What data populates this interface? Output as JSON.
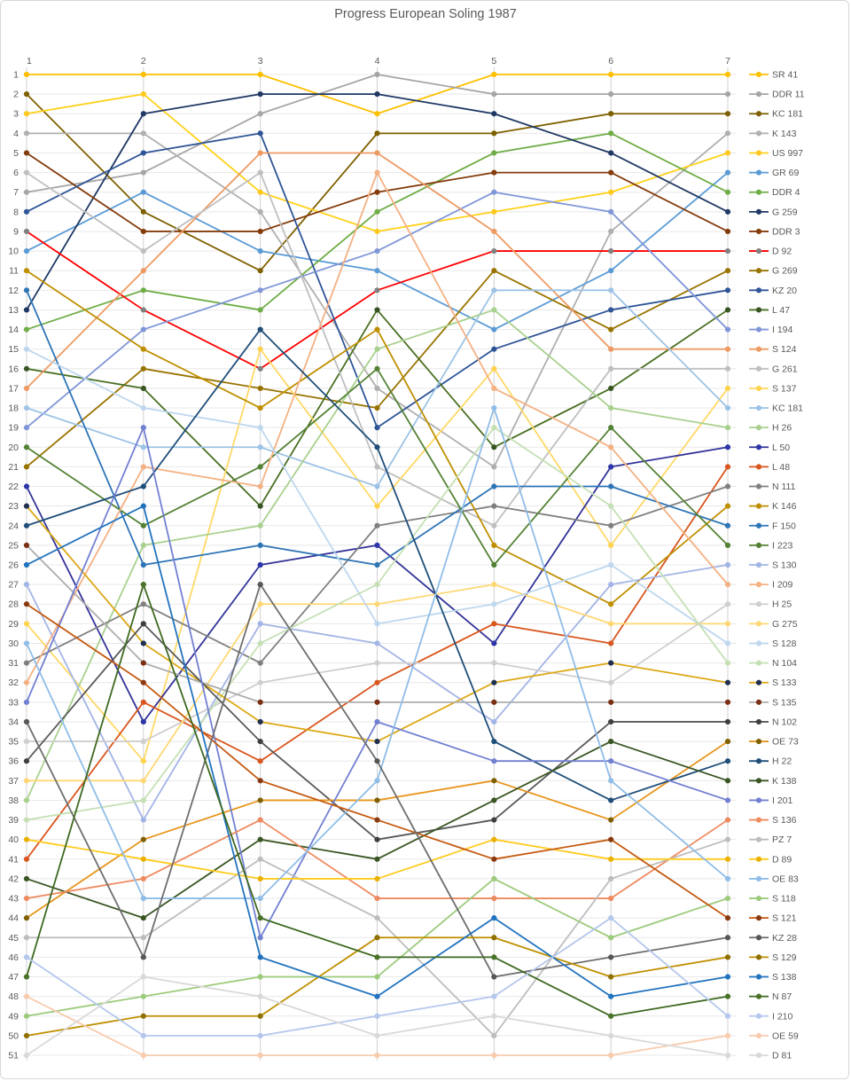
{
  "title": "Progress European Soling 1987",
  "chart_data": {
    "type": "line",
    "subtype": "bump-rank-chart",
    "title": "Progress European Soling 1987",
    "xlabel": "",
    "ylabel": "",
    "x_axis": {
      "position": "top",
      "ticks": [
        "1",
        "2",
        "3",
        "4",
        "5",
        "6",
        "7"
      ]
    },
    "y_axis": {
      "position": "left",
      "min": 1,
      "max": 51,
      "step": 1,
      "inverted": true
    },
    "grid": {
      "horizontal": true,
      "vertical": true
    },
    "legend_position": "right",
    "series": [
      {
        "label": "SR 41",
        "line_color": "#FFC000",
        "marker_color": "#FFC000",
        "ranks": [
          1,
          1,
          1,
          3,
          1,
          1,
          1
        ]
      },
      {
        "label": "DDR 11",
        "line_color": "#A6A6A6",
        "marker_color": "#A6A6A6",
        "ranks": [
          7,
          6,
          3,
          1,
          2,
          2,
          2
        ]
      },
      {
        "label": "KC 181",
        "line_color": "#7F6000",
        "marker_color": "#7F6000",
        "ranks": [
          2,
          8,
          11,
          4,
          4,
          3,
          3
        ]
      },
      {
        "label": "K 143",
        "line_color": "#AFAFAF",
        "marker_color": "#AFAFAF",
        "ranks": [
          4,
          4,
          8,
          17,
          21,
          9,
          4
        ]
      },
      {
        "label": "US 997",
        "line_color": "#FFD11A",
        "marker_color": "#FFC81E",
        "ranks": [
          3,
          2,
          7,
          9,
          8,
          7,
          5
        ]
      },
      {
        "label": "GR 69",
        "line_color": "#5B9BD5",
        "marker_color": "#5B9BD5",
        "ranks": [
          10,
          7,
          10,
          11,
          14,
          11,
          6
        ]
      },
      {
        "label": "DDR 4",
        "line_color": "#70AD47",
        "marker_color": "#70AD47",
        "ranks": [
          14,
          12,
          13,
          8,
          5,
          4,
          7
        ]
      },
      {
        "label": "G 259",
        "line_color": "#1F3864",
        "marker_color": "#1F3864",
        "ranks": [
          13,
          3,
          2,
          2,
          3,
          5,
          8
        ]
      },
      {
        "label": "DDR 3",
        "line_color": "#843C0C",
        "marker_color": "#843C0C",
        "ranks": [
          5,
          9,
          9,
          7,
          6,
          6,
          9
        ]
      },
      {
        "label": "D 92",
        "line_color": "#FF0000",
        "marker_color": "#808080",
        "ranks": [
          9,
          13,
          16,
          12,
          10,
          10,
          10
        ]
      },
      {
        "label": "G 269",
        "line_color": "#997300",
        "marker_color": "#997300",
        "ranks": [
          21,
          16,
          17,
          18,
          11,
          14,
          11
        ]
      },
      {
        "label": "KZ 20",
        "line_color": "#2F5597",
        "marker_color": "#2F5597",
        "ranks": [
          8,
          5,
          4,
          19,
          15,
          13,
          12
        ]
      },
      {
        "label": "L 47",
        "line_color": "#4A7023",
        "marker_color": "#375623",
        "ranks": [
          16,
          17,
          23,
          13,
          20,
          17,
          13
        ]
      },
      {
        "label": "I 194",
        "line_color": "#8096D8",
        "marker_color": "#8096D8",
        "ranks": [
          19,
          14,
          12,
          10,
          7,
          8,
          14
        ]
      },
      {
        "label": "S 124",
        "line_color": "#ED9A63",
        "marker_color": "#ED9A63",
        "ranks": [
          17,
          11,
          5,
          5,
          9,
          15,
          15
        ]
      },
      {
        "label": "G 261",
        "line_color": "#BFBFBF",
        "marker_color": "#BFBFBF",
        "ranks": [
          6,
          10,
          6,
          21,
          24,
          16,
          16
        ]
      },
      {
        "label": "S 137",
        "line_color": "#FFD966",
        "marker_color": "#FFD24D",
        "ranks": [
          29,
          36,
          15,
          23,
          16,
          25,
          17
        ]
      },
      {
        "label": "KC 181",
        "line_color": "#9DC3E6",
        "marker_color": "#9DC3E6",
        "ranks": [
          18,
          20,
          20,
          22,
          12,
          12,
          18
        ]
      },
      {
        "label": "H 26",
        "line_color": "#A9D18E",
        "marker_color": "#A9D18E",
        "ranks": [
          38,
          25,
          24,
          15,
          13,
          18,
          19
        ]
      },
      {
        "label": "L 50",
        "line_color": "#333399",
        "marker_color": "#2D36A8",
        "ranks": [
          22,
          34,
          26,
          25,
          30,
          21,
          20
        ]
      },
      {
        "label": "L 48",
        "line_color": "#D9561E",
        "marker_color": "#D9561E",
        "ranks": [
          41,
          33,
          36,
          32,
          29,
          30,
          21
        ]
      },
      {
        "label": "N 111",
        "line_color": "#808080",
        "marker_color": "#808080",
        "ranks": [
          31,
          28,
          31,
          24,
          23,
          24,
          22
        ]
      },
      {
        "label": "K 146",
        "line_color": "#BF8F00",
        "marker_color": "#BF8F00",
        "ranks": [
          11,
          15,
          18,
          14,
          25,
          28,
          23
        ]
      },
      {
        "label": "F 150",
        "line_color": "#2E75B6",
        "marker_color": "#2E75B6",
        "ranks": [
          12,
          26,
          25,
          26,
          22,
          22,
          24
        ]
      },
      {
        "label": "I 223",
        "line_color": "#548235",
        "marker_color": "#548235",
        "ranks": [
          20,
          24,
          21,
          16,
          26,
          19,
          25
        ]
      },
      {
        "label": "S 130",
        "line_color": "#A3B5E6",
        "marker_color": "#A3B5E6",
        "ranks": [
          27,
          39,
          29,
          30,
          34,
          27,
          26
        ]
      },
      {
        "label": "I 209",
        "line_color": "#F4B183",
        "marker_color": "#F4B183",
        "ranks": [
          32,
          21,
          22,
          6,
          17,
          20,
          27
        ]
      },
      {
        "label": "H 25",
        "line_color": "#D0CECE",
        "marker_color": "#D0CECE",
        "ranks": [
          35,
          35,
          32,
          31,
          31,
          32,
          28
        ]
      },
      {
        "label": "G 275",
        "line_color": "#FFD875",
        "marker_color": "#FFD875",
        "ranks": [
          37,
          37,
          28,
          28,
          27,
          29,
          29
        ]
      },
      {
        "label": "S 128",
        "line_color": "#BDD7EE",
        "marker_color": "#BDD7EE",
        "ranks": [
          15,
          18,
          19,
          29,
          28,
          26,
          30
        ]
      },
      {
        "label": "N 104",
        "line_color": "#C5E0B4",
        "marker_color": "#C5E0B4",
        "ranks": [
          39,
          38,
          30,
          27,
          19,
          23,
          31
        ]
      },
      {
        "label": "S 133",
        "line_color": "#DDA918",
        "marker_color": "#203050",
        "ranks": [
          23,
          30,
          34,
          35,
          32,
          31,
          32
        ]
      },
      {
        "label": "S 135",
        "line_color": "#ADADAD",
        "marker_color": "#7B3014",
        "ranks": [
          25,
          31,
          33,
          33,
          33,
          33,
          33
        ]
      },
      {
        "label": "N 102",
        "line_color": "#595959",
        "marker_color": "#3F3F3F",
        "ranks": [
          36,
          29,
          35,
          40,
          39,
          34,
          34
        ]
      },
      {
        "label": "OE 73",
        "line_color": "#E8961E",
        "marker_color": "#7F6000",
        "ranks": [
          44,
          40,
          38,
          38,
          37,
          39,
          35
        ]
      },
      {
        "label": "H 22",
        "line_color": "#1F4E79",
        "marker_color": "#1F4E79",
        "ranks": [
          24,
          22,
          14,
          20,
          35,
          38,
          36
        ]
      },
      {
        "label": "K 138",
        "line_color": "#3A5623",
        "marker_color": "#3A5623",
        "ranks": [
          42,
          44,
          40,
          41,
          38,
          35,
          37
        ]
      },
      {
        "label": "I 201",
        "line_color": "#7280D2",
        "marker_color": "#7280D2",
        "ranks": [
          33,
          19,
          45,
          34,
          36,
          36,
          38
        ]
      },
      {
        "label": "S 136",
        "line_color": "#EE8A5F",
        "marker_color": "#EE8A5F",
        "ranks": [
          43,
          42,
          39,
          43,
          43,
          43,
          39
        ]
      },
      {
        "label": "PZ 7",
        "line_color": "#BDBDBD",
        "marker_color": "#BDBDBD",
        "ranks": [
          45,
          45,
          41,
          44,
          50,
          42,
          40
        ]
      },
      {
        "label": "D 89",
        "line_color": "#FFCB1F",
        "marker_color": "#E9B000",
        "ranks": [
          40,
          41,
          42,
          42,
          40,
          41,
          41
        ]
      },
      {
        "label": "OE 83",
        "line_color": "#8FBDE8",
        "marker_color": "#8FBDE8",
        "ranks": [
          30,
          43,
          43,
          37,
          18,
          37,
          42
        ]
      },
      {
        "label": "S 118",
        "line_color": "#9CCB7B",
        "marker_color": "#9CCB7B",
        "ranks": [
          49,
          48,
          47,
          47,
          42,
          45,
          43
        ]
      },
      {
        "label": "S 121",
        "line_color": "#C55A11",
        "marker_color": "#8A3A10",
        "ranks": [
          28,
          32,
          37,
          39,
          41,
          40,
          44
        ]
      },
      {
        "label": "KZ 28",
        "line_color": "#6E6E6E",
        "marker_color": "#565656",
        "ranks": [
          34,
          46,
          27,
          36,
          47,
          46,
          45
        ]
      },
      {
        "label": "S 129",
        "line_color": "#BF8F00",
        "marker_color": "#8F7000",
        "ranks": [
          50,
          49,
          49,
          45,
          45,
          47,
          46
        ]
      },
      {
        "label": "S 138",
        "line_color": "#2273BF",
        "marker_color": "#2273BF",
        "ranks": [
          26,
          23,
          46,
          48,
          44,
          48,
          47
        ]
      },
      {
        "label": "N 87",
        "line_color": "#3E6921",
        "marker_color": "#4A7229",
        "ranks": [
          47,
          27,
          44,
          46,
          46,
          49,
          48
        ]
      },
      {
        "label": "I 210",
        "line_color": "#B4C7ED",
        "marker_color": "#B4C7ED",
        "ranks": [
          46,
          50,
          50,
          49,
          48,
          44,
          49
        ]
      },
      {
        "label": "OE 59",
        "line_color": "#F8CBAD",
        "marker_color": "#F8CBAD",
        "ranks": [
          48,
          51,
          51,
          51,
          51,
          51,
          50
        ]
      },
      {
        "label": "D 81",
        "line_color": "#D9D9D9",
        "marker_color": "#D9D9D9",
        "ranks": [
          51,
          47,
          48,
          50,
          49,
          50,
          51
        ]
      }
    ]
  },
  "colors": {
    "title_text": "#595959",
    "axis_text": "#595959",
    "grid_vertical": "#D0D0D0",
    "grid_horizontal": "#E8E8E8",
    "frame_border": "#D7D7D7",
    "background": "#FFFFFF"
  }
}
